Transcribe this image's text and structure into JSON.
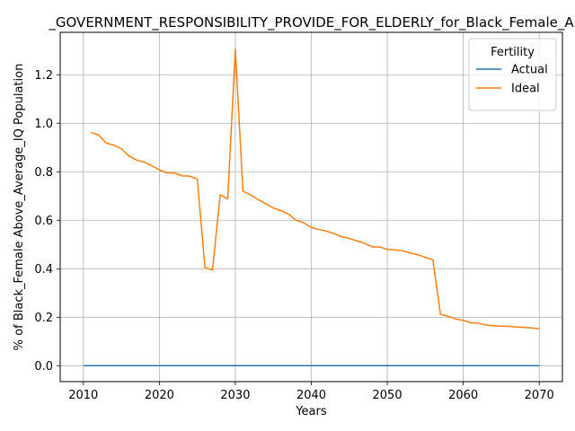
{
  "chart_data": {
    "type": "line",
    "title": "_GOVERNMENT_RESPONSIBILITY_PROVIDE_FOR_ELDERLY_for_Black_Female_A",
    "xlabel": "Years",
    "ylabel": "% of Black_Female Above_Average_IQ Population",
    "xlim": [
      2006.95,
      2073.05
    ],
    "ylim": [
      -0.0655,
      1.375
    ],
    "xticks": [
      2010,
      2020,
      2030,
      2040,
      2050,
      2060,
      2070
    ],
    "yticks": [
      0.0,
      0.2,
      0.4,
      0.6,
      0.8,
      1.0,
      1.2
    ],
    "grid": true,
    "legend": {
      "title": "Fertility",
      "placement": "top-right"
    },
    "series": [
      {
        "name": "Actual",
        "color": "#1f77b4",
        "x": [
          2010,
          2015,
          2020,
          2025,
          2030,
          2035,
          2040,
          2045,
          2050,
          2055,
          2060,
          2065,
          2070
        ],
        "y": [
          0,
          0,
          0,
          0,
          0,
          0,
          0,
          0,
          0,
          0,
          0,
          0,
          0
        ]
      },
      {
        "name": "Ideal",
        "color": "#ff7f0e",
        "x": [
          2011,
          2012,
          2013,
          2014,
          2015,
          2016,
          2017,
          2018,
          2019,
          2020,
          2021,
          2022,
          2023,
          2024,
          2025,
          2026,
          2027,
          2028,
          2029,
          2030,
          2031,
          2032,
          2033,
          2034,
          2035,
          2036,
          2037,
          2038,
          2039,
          2040,
          2041,
          2042,
          2043,
          2044,
          2045,
          2046,
          2047,
          2048,
          2049,
          2050,
          2051,
          2052,
          2053,
          2054,
          2055,
          2056,
          2057,
          2058,
          2059,
          2060,
          2061,
          2062,
          2063,
          2064,
          2065,
          2066,
          2067,
          2068,
          2069,
          2070
        ],
        "y": [
          0.962,
          0.952,
          0.918,
          0.91,
          0.895,
          0.865,
          0.848,
          0.84,
          0.825,
          0.808,
          0.795,
          0.795,
          0.783,
          0.782,
          0.77,
          0.405,
          0.395,
          0.705,
          0.688,
          1.305,
          0.72,
          0.705,
          0.685,
          0.668,
          0.65,
          0.64,
          0.625,
          0.6,
          0.59,
          0.57,
          0.562,
          0.555,
          0.545,
          0.532,
          0.525,
          0.515,
          0.505,
          0.49,
          0.49,
          0.48,
          0.478,
          0.474,
          0.465,
          0.458,
          0.447,
          0.437,
          0.212,
          0.204,
          0.193,
          0.187,
          0.177,
          0.175,
          0.168,
          0.165,
          0.163,
          0.162,
          0.16,
          0.158,
          0.156,
          0.153
        ]
      }
    ]
  }
}
